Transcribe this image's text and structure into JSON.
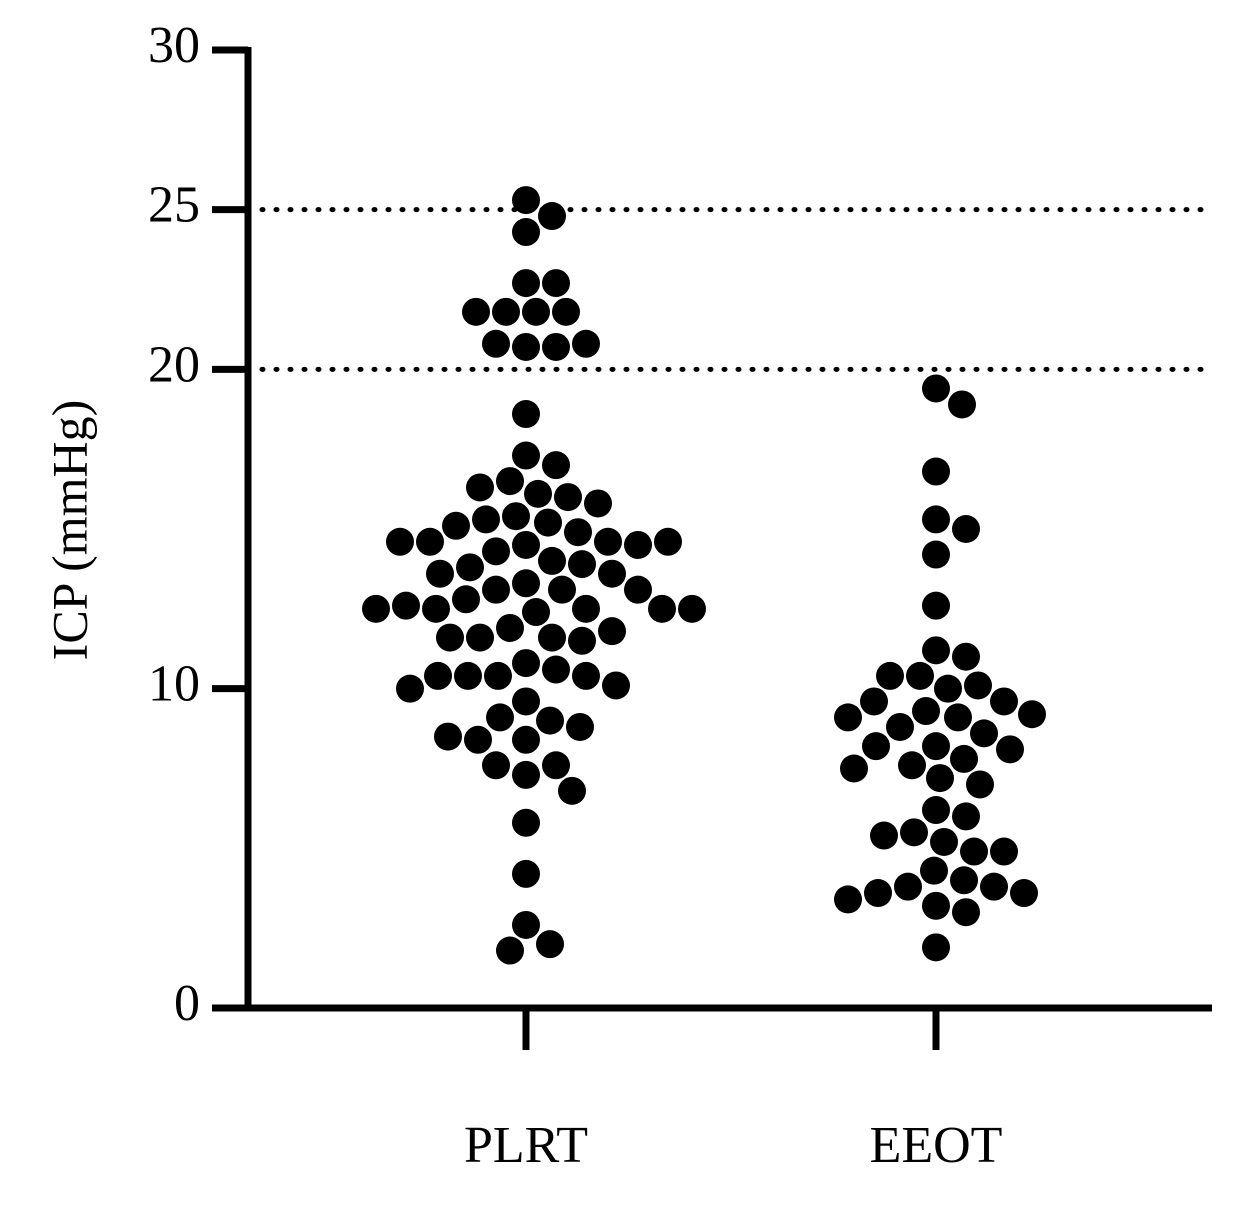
{
  "chart_data": {
    "type": "dotplot",
    "y_label": "ICP (mmHg)",
    "categories": [
      "PLRT",
      "EEOT"
    ],
    "color": "#000000",
    "values": [
      [
        25.3,
        24.8,
        24.3,
        22.7,
        22.7,
        21.8,
        21.8,
        21.8,
        21.8,
        20.7,
        20.7,
        20.8,
        20.8,
        18.6,
        17.3,
        17.0,
        16.5,
        16.3,
        16.1,
        16.0,
        15.8,
        15.4,
        15.3,
        15.2,
        15.1,
        14.9,
        14.6,
        14.6,
        14.5,
        14.5,
        14.6,
        14.6,
        14.3,
        14.0,
        13.9,
        13.8,
        13.6,
        13.3,
        13.6,
        13.1,
        13.1,
        13.1,
        12.8,
        12.4,
        12.5,
        12.5,
        12.6,
        12.5,
        12.5,
        12.5,
        11.9,
        11.6,
        11.6,
        11.5,
        11.6,
        11.8,
        10.8,
        10.6,
        10.4,
        10.4,
        10.4,
        10.4,
        10.1,
        10.0,
        9.6,
        9.0,
        9.1,
        8.8,
        8.4,
        8.4,
        8.5,
        7.3,
        7.6,
        7.6,
        6.8,
        5.8,
        4.2,
        2.6,
        2.0,
        1.8
      ],
      [
        19.4,
        18.9,
        16.8,
        15.3,
        15.0,
        14.2,
        12.6,
        11.2,
        11.0,
        10.4,
        10.4,
        10.0,
        10.1,
        9.6,
        9.6,
        9.3,
        9.1,
        9.1,
        9.2,
        8.8,
        8.6,
        8.2,
        8.2,
        8.1,
        7.8,
        7.6,
        7.5,
        7.2,
        7.0,
        6.2,
        6.0,
        5.5,
        5.4,
        5.2,
        4.9,
        4.9,
        4.3,
        4.0,
        3.8,
        3.8,
        3.6,
        3.6,
        3.4,
        3.2,
        3.0,
        1.9
      ]
    ],
    "ylim": [
      0,
      30
    ],
    "yticks": [
      0,
      10,
      20,
      25,
      30
    ],
    "reference_lines": [
      20,
      25
    ]
  }
}
